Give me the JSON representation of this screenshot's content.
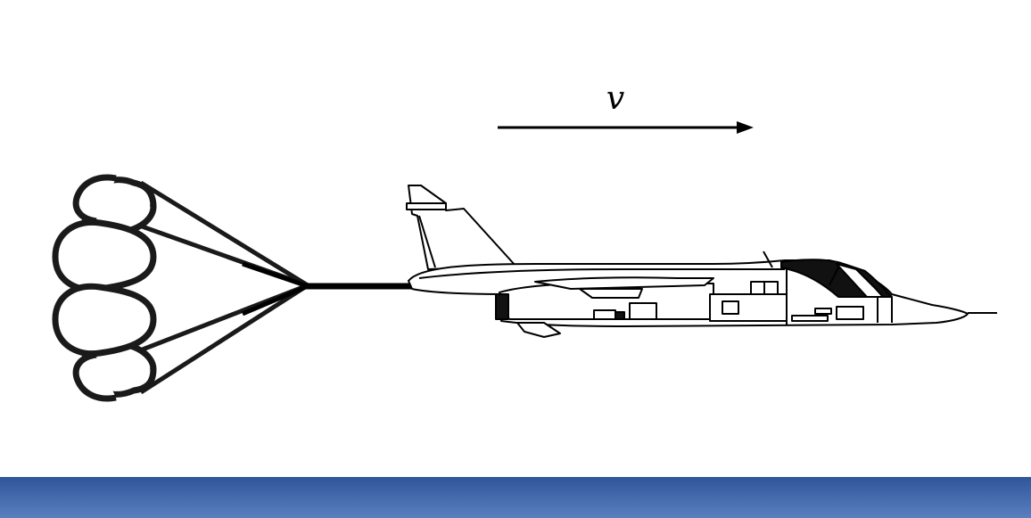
{
  "velocity_label": "v",
  "colors": {
    "line": "#000000",
    "background": "#ffffff",
    "footer_top": "#30569a",
    "footer_bottom": "#5a7fbf"
  },
  "icons": {
    "parachute": "parachute-icon",
    "jet": "jet-aircraft-icon",
    "arrow": "velocity-arrow"
  }
}
